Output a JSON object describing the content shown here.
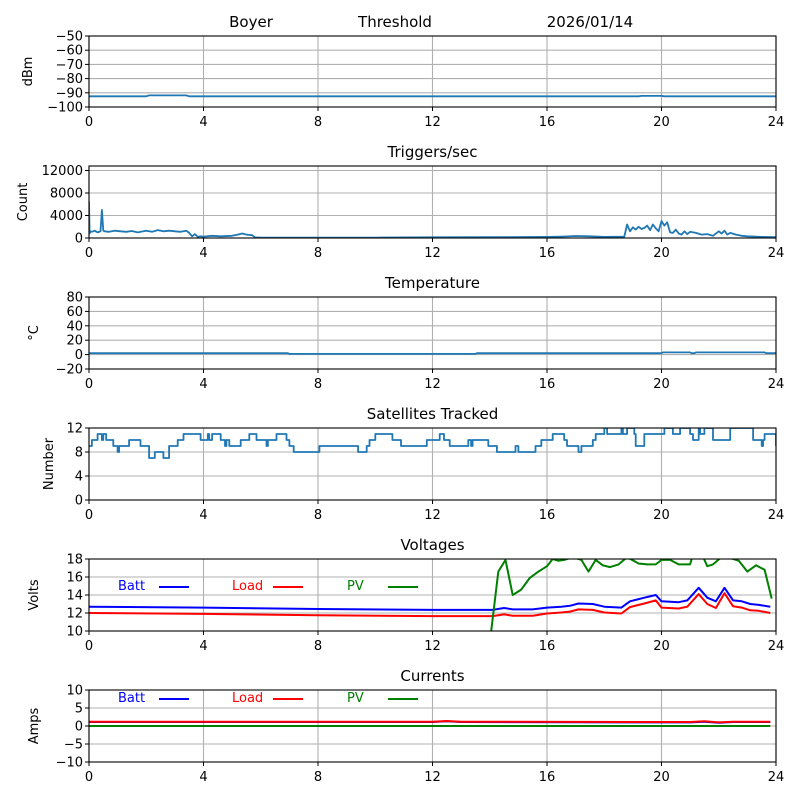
{
  "header": {
    "station": "Boyer",
    "mode": "Threshold",
    "date": "2026/01/14"
  },
  "colors": {
    "series_default": "#1f77b4",
    "batt": "#0000ff",
    "load": "#ff0000",
    "pv": "#008000",
    "grid": "#b0b0b0"
  },
  "chart_data": [
    {
      "id": "noise",
      "type": "line",
      "title": "",
      "xlabel": "",
      "ylabel": "dBm",
      "xlim": [
        0,
        24
      ],
      "ylim": [
        -100,
        -50
      ],
      "xticks": [
        0,
        4,
        8,
        12,
        16,
        20,
        24
      ],
      "yticks": [
        -100,
        -90,
        -80,
        -70,
        -60,
        -50
      ],
      "ytick_labels": [
        "−100",
        "−90",
        "−80",
        "−70",
        "−60",
        "−50"
      ],
      "grid": true,
      "series": [
        {
          "name": "dBm",
          "color": "#1f77b4",
          "x": [
            0,
            2.0,
            2.1,
            3.4,
            3.5,
            19.2,
            19.3,
            20.0,
            20.1,
            24
          ],
          "y": [
            -92.5,
            -92.5,
            -91.8,
            -91.8,
            -92.5,
            -92.5,
            -92.2,
            -92.2,
            -92.5,
            -92.5
          ]
        }
      ]
    },
    {
      "id": "triggers",
      "type": "line",
      "title": "Triggers/sec",
      "xlabel": "",
      "ylabel": "Count",
      "xlim": [
        0,
        24
      ],
      "ylim": [
        0,
        12800
      ],
      "xticks": [
        0,
        4,
        8,
        12,
        16,
        20,
        24
      ],
      "yticks": [
        0,
        4000,
        8000,
        12000
      ],
      "ytick_labels": [
        "0",
        "4000",
        "8000",
        "12000"
      ],
      "grid": true,
      "series": [
        {
          "name": "Triggers",
          "color": "#1f77b4",
          "x": [
            0,
            0.02,
            0.05,
            0.1,
            0.2,
            0.3,
            0.4,
            0.45,
            0.5,
            0.55,
            0.7,
            0.9,
            1.1,
            1.3,
            1.5,
            1.7,
            1.9,
            2.0,
            2.2,
            2.4,
            2.6,
            2.8,
            3.0,
            3.2,
            3.4,
            3.5,
            3.6,
            3.7,
            3.8,
            3.9,
            4.0,
            4.3,
            4.6,
            5.0,
            5.2,
            5.35,
            5.5,
            5.7,
            5.8,
            6.0,
            8,
            10,
            12,
            14,
            16,
            16.5,
            17,
            17.5,
            18,
            18.7,
            18.8,
            18.9,
            19.0,
            19.1,
            19.2,
            19.3,
            19.4,
            19.5,
            19.6,
            19.7,
            19.8,
            19.9,
            20.0,
            20.1,
            20.2,
            20.3,
            20.4,
            20.5,
            20.6,
            20.7,
            20.8,
            20.9,
            21.0,
            21.2,
            21.4,
            21.6,
            21.8,
            22.0,
            22.1,
            22.2,
            22.3,
            22.4,
            22.6,
            22.8,
            23.0,
            23.5,
            24
          ],
          "y": [
            6500,
            800,
            1200,
            1100,
            1300,
            1000,
            1200,
            5000,
            1300,
            1200,
            1100,
            1300,
            1200,
            1100,
            1250,
            1000,
            1200,
            1300,
            1100,
            1400,
            1200,
            1300,
            1200,
            1100,
            1300,
            900,
            300,
            700,
            200,
            300,
            250,
            400,
            300,
            400,
            600,
            800,
            600,
            500,
            100,
            50,
            60,
            80,
            120,
            150,
            200,
            250,
            350,
            300,
            200,
            250,
            2400,
            1200,
            1900,
            1500,
            2000,
            1600,
            1800,
            2200,
            1400,
            2400,
            1700,
            1200,
            3000,
            2200,
            2800,
            1000,
            900,
            1500,
            800,
            600,
            1200,
            700,
            1100,
            900,
            600,
            700,
            400,
            1200,
            800,
            1300,
            600,
            900,
            600,
            400,
            300,
            200,
            150
          ]
        }
      ]
    },
    {
      "id": "temperature",
      "type": "line",
      "title": "Temperature",
      "xlabel": "",
      "ylabel": "°C",
      "xlim": [
        0,
        24
      ],
      "ylim": [
        -20,
        80
      ],
      "xticks": [
        0,
        4,
        8,
        12,
        16,
        20,
        24
      ],
      "yticks": [
        -20,
        0,
        20,
        40,
        60,
        80
      ],
      "ytick_labels": [
        "−20",
        "0",
        "20",
        "40",
        "60",
        "80"
      ],
      "grid": true,
      "series": [
        {
          "name": "Temperature",
          "color": "#1f77b4",
          "x": [
            0,
            6.95,
            7.0,
            13.5,
            13.55,
            20.0,
            20.05,
            21.0,
            21.05,
            21.15,
            21.2,
            23.6,
            23.65,
            24
          ],
          "y": [
            2,
            2,
            1,
            1,
            2,
            2,
            3,
            3,
            2,
            2,
            3,
            3,
            2,
            2
          ]
        }
      ]
    },
    {
      "id": "satellites",
      "type": "line",
      "title": "Satellites Tracked",
      "xlabel": "",
      "ylabel": "Number",
      "xlim": [
        0,
        24
      ],
      "ylim": [
        0,
        12
      ],
      "xticks": [
        0,
        4,
        8,
        12,
        16,
        20,
        24
      ],
      "yticks": [
        0,
        4,
        8,
        12
      ],
      "ytick_labels": [
        "0",
        "4",
        "8",
        "12"
      ],
      "grid": true,
      "series": [
        {
          "name": "Satellites",
          "color": "#1f77b4",
          "step": true,
          "x": [
            0,
            0.1,
            0.3,
            0.45,
            0.5,
            0.6,
            0.85,
            1.0,
            1.05,
            1.1,
            1.4,
            1.8,
            2.1,
            2.3,
            2.6,
            2.8,
            3.1,
            3.3,
            3.9,
            4.15,
            4.2,
            4.3,
            4.6,
            4.75,
            4.8,
            4.9,
            5.3,
            5.6,
            5.85,
            6.2,
            6.25,
            6.5,
            6.55,
            6.9,
            7.0,
            7.15,
            8.0,
            8.05,
            9.4,
            9.7,
            9.8,
            10.0,
            10.6,
            10.9,
            11.8,
            12.25,
            12.4,
            12.6,
            13.25,
            13.35,
            13.4,
            13.95,
            14.25,
            14.9,
            15.0,
            15.6,
            15.8,
            16.2,
            16.6,
            16.7,
            17.1,
            17.2,
            17.6,
            17.7,
            18.0,
            18.1,
            18.6,
            18.65,
            18.8,
            19.05,
            19.1,
            19.4,
            20.1,
            20.4,
            20.65,
            21.0,
            21.1,
            21.3,
            21.35,
            21.5,
            21.8,
            22.4,
            22.55,
            23.2,
            23.5,
            23.55,
            23.6,
            24
          ],
          "y": [
            9,
            10,
            11,
            10,
            11,
            10,
            9,
            8,
            9,
            9,
            10,
            9,
            7,
            8,
            7,
            9,
            10,
            11,
            10,
            11,
            10,
            11,
            10,
            9,
            10,
            9,
            10,
            11,
            10,
            9,
            10,
            10,
            11,
            10,
            9,
            8,
            8,
            9,
            8,
            9,
            10,
            11,
            10,
            9,
            10,
            11,
            10,
            9,
            10,
            9,
            10,
            9,
            8,
            9,
            8,
            9,
            10,
            11,
            10,
            9,
            8,
            9,
            10,
            11,
            12,
            11,
            12,
            11,
            12,
            11,
            9,
            11,
            12,
            11,
            12,
            11,
            10,
            12,
            11,
            12,
            10,
            12,
            12,
            10,
            9,
            10,
            11,
            9
          ]
        }
      ]
    },
    {
      "id": "voltages",
      "type": "line",
      "title": "Voltages",
      "xlabel": "",
      "ylabel": "Volts",
      "xlim": [
        0,
        24
      ],
      "ylim": [
        10,
        18
      ],
      "xticks": [
        0,
        4,
        8,
        12,
        16,
        20,
        24
      ],
      "yticks": [
        10,
        12,
        14,
        16,
        18
      ],
      "ytick_labels": [
        "10",
        "12",
        "14",
        "16",
        "18"
      ],
      "grid": true,
      "legend": {
        "placement": "top-left, inline",
        "entries": [
          {
            "label": "Batt",
            "color": "#0000ff"
          },
          {
            "label": "Load",
            "color": "#ff0000"
          },
          {
            "label": "PV",
            "color": "#008000"
          }
        ]
      },
      "series": [
        {
          "name": "Batt",
          "color": "#0000ff",
          "x": [
            0,
            4,
            8,
            12,
            14.1,
            14.5,
            14.8,
            15.5,
            16.0,
            16.5,
            16.8,
            17.1,
            17.6,
            18.0,
            18.6,
            18.9,
            19.4,
            19.8,
            20.0,
            20.6,
            20.9,
            21.3,
            21.6,
            21.9,
            22.2,
            22.5,
            22.8,
            23.1,
            23.4,
            23.8
          ],
          "y": [
            12.7,
            12.6,
            12.45,
            12.35,
            12.35,
            12.55,
            12.4,
            12.4,
            12.6,
            12.7,
            12.8,
            13.05,
            13.0,
            12.7,
            12.6,
            13.3,
            13.7,
            14.0,
            13.3,
            13.2,
            13.4,
            14.8,
            13.7,
            13.3,
            14.8,
            13.4,
            13.3,
            13.0,
            12.9,
            12.7
          ]
        },
        {
          "name": "Load",
          "color": "#ff0000",
          "x": [
            0,
            4,
            8,
            12,
            14.1,
            14.5,
            14.8,
            15.5,
            16.0,
            16.5,
            16.8,
            17.1,
            17.6,
            18.0,
            18.6,
            18.9,
            19.4,
            19.8,
            20.0,
            20.6,
            20.9,
            21.3,
            21.6,
            21.9,
            22.2,
            22.5,
            22.8,
            23.1,
            23.4,
            23.8
          ],
          "y": [
            12.0,
            11.9,
            11.75,
            11.65,
            11.65,
            11.85,
            11.7,
            11.7,
            11.95,
            12.05,
            12.15,
            12.4,
            12.35,
            12.05,
            11.95,
            12.65,
            13.05,
            13.4,
            12.6,
            12.5,
            12.7,
            14.1,
            13.0,
            12.55,
            14.2,
            12.75,
            12.6,
            12.3,
            12.25,
            12.0
          ]
        },
        {
          "name": "PV",
          "color": "#008000",
          "x": [
            14.05,
            14.3,
            14.55,
            14.8,
            15.1,
            15.4,
            15.7,
            16.0,
            16.2,
            16.4,
            16.6,
            16.9,
            17.2,
            17.45,
            17.7,
            17.95,
            18.2,
            18.5,
            18.8,
            19.2,
            19.5,
            19.8,
            20.0,
            20.3,
            20.6,
            21.0,
            21.1,
            21.4,
            21.6,
            21.8,
            22.2,
            22.4,
            22.7,
            23.0,
            23.3,
            23.6,
            23.85
          ],
          "y": [
            10.0,
            16.6,
            17.9,
            14.0,
            14.6,
            15.9,
            16.6,
            17.2,
            18.0,
            17.8,
            17.9,
            18.2,
            17.9,
            16.6,
            17.9,
            17.3,
            17.1,
            17.4,
            18.2,
            17.5,
            17.4,
            17.4,
            17.9,
            17.9,
            17.4,
            17.4,
            18.5,
            18.6,
            17.2,
            17.4,
            18.5,
            18.1,
            17.8,
            16.6,
            17.3,
            16.8,
            13.6
          ]
        }
      ]
    },
    {
      "id": "currents",
      "type": "line",
      "title": "Currents",
      "xlabel": "",
      "ylabel": "Amps",
      "xlim": [
        0,
        24
      ],
      "ylim": [
        -10,
        10
      ],
      "xticks": [
        0,
        4,
        8,
        12,
        16,
        20,
        24
      ],
      "yticks": [
        -10,
        -5,
        0,
        5,
        10
      ],
      "ytick_labels": [
        "−10",
        "−5",
        "0",
        "5",
        "10"
      ],
      "grid": true,
      "legend": {
        "placement": "top-left, inline",
        "entries": [
          {
            "label": "Batt",
            "color": "#0000ff"
          },
          {
            "label": "Load",
            "color": "#ff0000"
          },
          {
            "label": "PV",
            "color": "#008000"
          }
        ]
      },
      "series": [
        {
          "name": "Batt",
          "color": "#0000ff",
          "x": [
            0,
            12.0,
            12.5,
            13.0,
            20.0,
            21.0,
            21.5,
            22.0,
            22.5,
            23.8
          ],
          "y": [
            1.1,
            1.1,
            1.3,
            1.1,
            1.0,
            1.0,
            1.2,
            0.9,
            1.1,
            1.1
          ]
        },
        {
          "name": "Load",
          "color": "#ff0000",
          "x": [
            0,
            12.0,
            12.5,
            13.0,
            20.0,
            21.0,
            21.5,
            22.0,
            22.5,
            23.8
          ],
          "y": [
            1.2,
            1.2,
            1.4,
            1.2,
            1.1,
            1.1,
            1.3,
            1.0,
            1.2,
            1.2
          ]
        },
        {
          "name": "PV",
          "color": "#008000",
          "x": [
            0,
            23.8
          ],
          "y": [
            0.0,
            0.0
          ]
        }
      ]
    }
  ]
}
